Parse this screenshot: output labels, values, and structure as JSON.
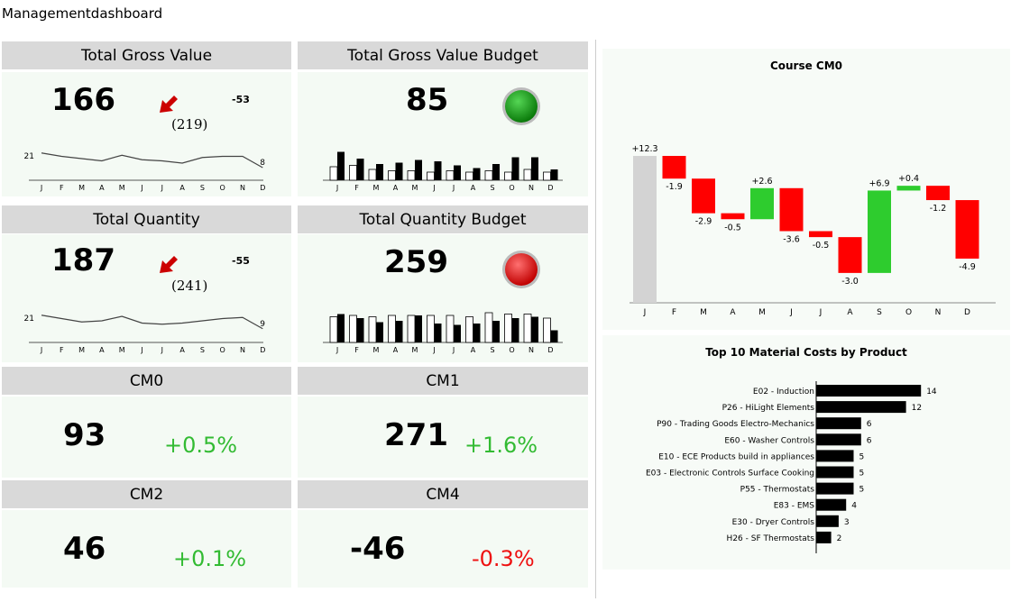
{
  "page": {
    "title": "Managementdashboard"
  },
  "months": [
    "J",
    "F",
    "M",
    "A",
    "M",
    "J",
    "J",
    "A",
    "S",
    "O",
    "N",
    "D"
  ],
  "colors": {
    "tile_header": "#d9d9d9",
    "tile_body": "#f4faf4",
    "positive": "#2ecc2e",
    "negative": "#ff0000",
    "arrow": "#cc0000",
    "waterfall_start": "#d3d3d3"
  },
  "tiles": {
    "gross_value": {
      "title": "Total Gross Value",
      "value": "166",
      "delta": "-53",
      "prior": "(219)",
      "trend_icon": "arrow-down-left-icon",
      "spark_start": "21",
      "spark_end": "8",
      "spark_values": [
        21,
        18,
        16,
        14,
        19,
        15,
        14,
        12,
        17,
        18,
        18,
        8
      ]
    },
    "gross_value_budget": {
      "title": "Total Gross Value Budget",
      "value": "85",
      "status_icon": "green-status-light-icon",
      "budget_values": [
        10,
        11,
        8,
        7,
        7,
        6,
        7,
        6,
        7,
        6,
        8,
        6
      ],
      "actual_values": [
        21,
        16,
        12,
        13,
        15,
        14,
        11,
        9,
        12,
        17,
        17,
        8
      ]
    },
    "quantity": {
      "title": "Total Quantity",
      "value": "187",
      "delta": "-55",
      "prior": "(241)",
      "trend_icon": "arrow-down-left-icon",
      "spark_start": "21",
      "spark_end": "9",
      "spark_values": [
        21,
        18,
        15,
        16,
        20,
        14,
        13,
        14,
        16,
        18,
        19,
        9
      ]
    },
    "quantity_budget": {
      "title": "Total Quantity Budget",
      "value": "259",
      "status_icon": "red-status-light-icon",
      "budget_values": [
        19,
        20,
        19,
        20,
        20,
        20,
        20,
        19,
        22,
        21,
        21,
        18
      ],
      "actual_values": [
        21,
        18,
        15,
        16,
        20,
        14,
        13,
        14,
        16,
        18,
        19,
        9
      ]
    },
    "cm0": {
      "title": "CM0",
      "value": "93",
      "pct": "+0.5%",
      "pct_color": "#33bb33"
    },
    "cm1": {
      "title": "CM1",
      "value": "271",
      "pct": "+1.6%",
      "pct_color": "#33bb33"
    },
    "cm2": {
      "title": "CM2",
      "value": "46",
      "pct": "+0.1%",
      "pct_color": "#33bb33"
    },
    "cm4": {
      "title": "CM4",
      "value": "-46",
      "pct": "-0.3%",
      "pct_color": "#ee1111"
    }
  },
  "chart_data": [
    {
      "type": "bar",
      "subtype": "waterfall",
      "title": "Course CM0",
      "categories": [
        "J",
        "F",
        "M",
        "A",
        "M",
        "J",
        "J",
        "A",
        "S",
        "O",
        "N",
        "D"
      ],
      "values": [
        12.3,
        -1.9,
        -2.9,
        -0.5,
        2.6,
        -3.6,
        -0.5,
        -3.0,
        6.9,
        0.4,
        -1.2,
        -4.9
      ],
      "labels": [
        "+12.3",
        "-1.9",
        "-2.9",
        "-0.5",
        "+2.6",
        "-3.6",
        "-0.5",
        "-3.0",
        "+6.9",
        "+0.4",
        "-1.2",
        "-4.9"
      ]
    },
    {
      "type": "bar",
      "orientation": "horizontal",
      "title": "Top 10 Material Costs by Product",
      "categories": [
        "E02 - Induction",
        "P26 - HiLight Elements",
        "P90 - Trading Goods Electro-Mechanics",
        "E60 - Washer Controls",
        "E10 - ECE Products build in appliances",
        "E03 - Electronic Controls Surface Cooking",
        "P55 - Thermostats",
        "E83 - EMS",
        "E30 - Dryer Controls",
        "H26 - SF Thermostats"
      ],
      "values": [
        14,
        12,
        6,
        6,
        5,
        5,
        5,
        4,
        3,
        2
      ]
    }
  ]
}
